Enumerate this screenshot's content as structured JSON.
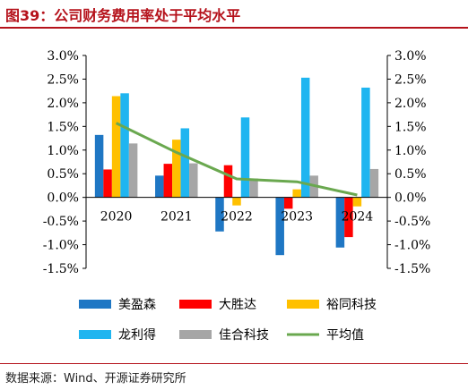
{
  "header": {
    "title": "图39：公司财务费用率处于平均水平"
  },
  "footer": {
    "source": "数据来源：Wind、开源证券研究所"
  },
  "chart_data": {
    "type": "bar",
    "categories": [
      "2020",
      "2021",
      "2022",
      "2023",
      "2024"
    ],
    "series": [
      {
        "name": "美盈森",
        "type": "bar",
        "color": "#1f77c4",
        "values": [
          1.32,
          0.46,
          -0.72,
          -1.22,
          -1.06
        ]
      },
      {
        "name": "大胜达",
        "type": "bar",
        "color": "#ff0000",
        "values": [
          0.59,
          0.71,
          0.68,
          -0.24,
          -0.84
        ]
      },
      {
        "name": "裕同科技",
        "type": "bar",
        "color": "#ffc000",
        "values": [
          2.14,
          1.22,
          -0.17,
          0.17,
          -0.19
        ]
      },
      {
        "name": "龙利得",
        "type": "bar",
        "color": "#1fb5f0",
        "values": [
          2.2,
          1.46,
          1.69,
          2.53,
          2.32
        ]
      },
      {
        "name": "佳合科技",
        "type": "bar",
        "color": "#a6a6a6",
        "values": [
          1.14,
          0.72,
          0.4,
          0.46,
          0.6
        ]
      },
      {
        "name": "平均值",
        "type": "line",
        "color": "#6aa84f",
        "values": [
          1.57,
          0.95,
          0.39,
          0.33,
          0.05
        ]
      }
    ],
    "ylim": [
      -1.5,
      3.0
    ],
    "yticks": [
      "3.0%",
      "2.5%",
      "2.0%",
      "1.5%",
      "1.0%",
      "0.5%",
      "0.0%",
      "-0.5%",
      "-1.0%",
      "-1.5%"
    ],
    "ytick_values": [
      3.0,
      2.5,
      2.0,
      1.5,
      1.0,
      0.5,
      0.0,
      -0.5,
      -1.0,
      -1.5
    ],
    "y2ticks": [
      "3.0%",
      "2.5%",
      "2.0%",
      "1.5%",
      "1.0%",
      "0.5%",
      "0.0%",
      "-0.5%",
      "-1.0%",
      "-1.5%"
    ],
    "grid": false,
    "legend_position": "bottom"
  }
}
